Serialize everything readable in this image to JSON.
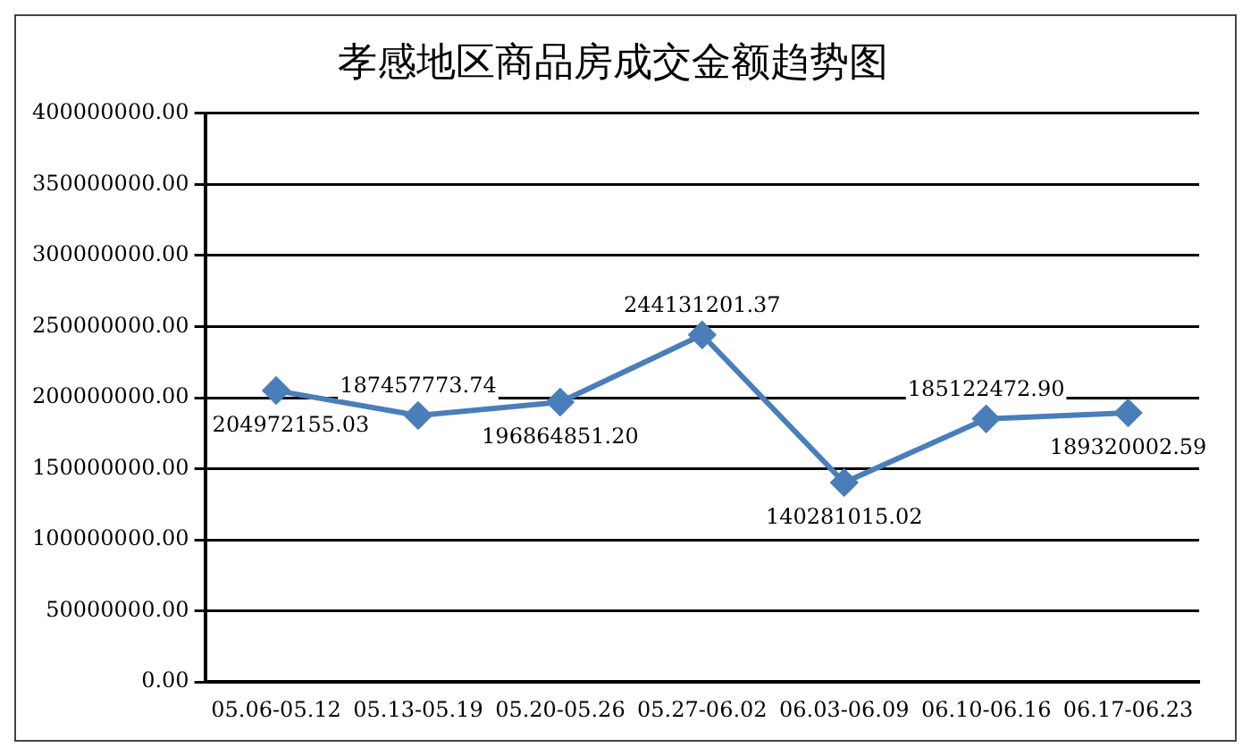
{
  "chart_data": {
    "type": "line",
    "title": "孝感地区商品房成交金额趋势图",
    "categories": [
      "05.06-05.12",
      "05.13-05.19",
      "05.20-05.26",
      "05.27-06.02",
      "06.03-06.09",
      "06.10-06.16",
      "06.17-06.23"
    ],
    "series": [
      {
        "color": "#4a7ebb",
        "values": [
          204972155.03,
          187457773.74,
          196864851.2,
          244131201.37,
          140281015.02,
          185122472.9,
          189320002.59
        ],
        "value_labels": [
          "204972155.03",
          "187457773.74",
          "196864851.20",
          "244131201.37",
          "140281015.02",
          "185122472.90",
          "189320002.59"
        ]
      }
    ],
    "ylim": [
      0,
      400000000
    ],
    "yticks": [
      {
        "value": 0,
        "label": "0.00"
      },
      {
        "value": 50000000,
        "label": "50000000.00"
      },
      {
        "value": 100000000,
        "label": "100000000.00"
      },
      {
        "value": 150000000,
        "label": "150000000.00"
      },
      {
        "value": 200000000,
        "label": "200000000.00"
      },
      {
        "value": 250000000,
        "label": "250000000.00"
      },
      {
        "value": 300000000,
        "label": "300000000.00"
      },
      {
        "value": 350000000,
        "label": "350000000.00"
      },
      {
        "value": 400000000,
        "label": "400000000.00"
      }
    ],
    "grid": "y",
    "legend": false,
    "marker": "diamond",
    "line_style": "solid"
  }
}
